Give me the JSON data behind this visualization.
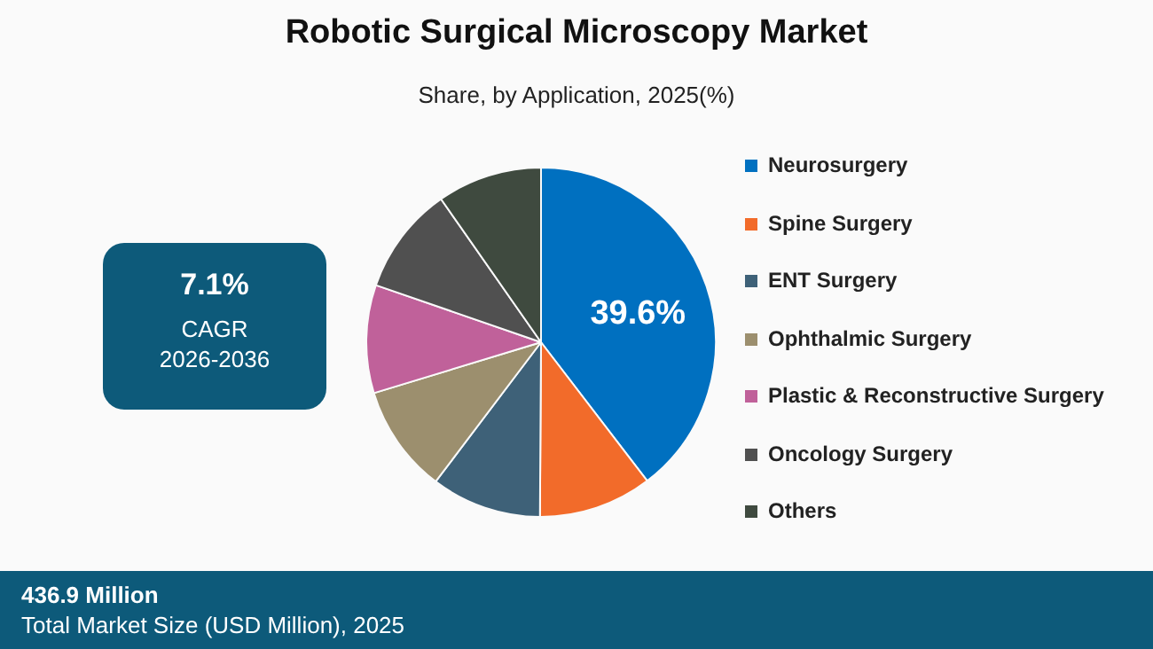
{
  "chart_data": {
    "type": "pie",
    "title": "Robotic Surgical Microscopy Market",
    "subtitle": "Share, by Application, 2025(%)",
    "categories": [
      "Neurosurgery",
      "Spine Surgery",
      "ENT Surgery",
      "Ophthalmic Surgery",
      "Plastic & Reconstructive Surgery",
      "Oncology Surgery",
      "Others"
    ],
    "values": [
      39.6,
      10.5,
      10.2,
      10,
      10,
      10,
      9.7
    ],
    "colors": [
      "#0070c0",
      "#f26b2a",
      "#3e6178",
      "#9c8f6e",
      "#c0619a",
      "#505050",
      "#3f4a3f"
    ],
    "value_labels": [
      "39.6%",
      null,
      null,
      null,
      null,
      null,
      null
    ],
    "legend": "right",
    "annotations": [
      "7.1%",
      "CAGR",
      "2026-2036",
      "436.9 Million",
      "Total Market Size (USD Million), 2025"
    ]
  }
}
